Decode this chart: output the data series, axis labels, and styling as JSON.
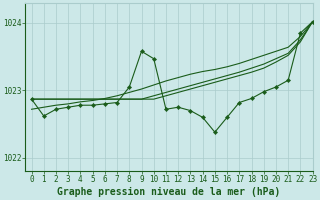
{
  "bg_color": "#cce8e8",
  "grid_color": "#aacccc",
  "line_color": "#1a5c1a",
  "xlabel": "Graphe pression niveau de la mer (hPa)",
  "xlabel_fontsize": 7,
  "tick_fontsize": 5.5,
  "xlim": [
    -0.5,
    23
  ],
  "ylim": [
    1021.8,
    1024.3
  ],
  "yticks": [
    1022,
    1023,
    1024
  ],
  "xticks": [
    0,
    1,
    2,
    3,
    4,
    5,
    6,
    7,
    8,
    9,
    10,
    11,
    12,
    13,
    14,
    15,
    16,
    17,
    18,
    19,
    20,
    21,
    22,
    23
  ],
  "jagged": [
    1022.87,
    1022.62,
    1022.72,
    1022.75,
    1022.78,
    1022.78,
    1022.8,
    1022.82,
    1023.05,
    1023.58,
    1023.47,
    1022.72,
    1022.75,
    1022.7,
    1022.6,
    1022.38,
    1022.6,
    1022.82,
    1022.88,
    1022.98,
    1023.05,
    1023.15,
    1023.85,
    1024.02
  ],
  "trend1": [
    1022.72,
    1022.75,
    1022.78,
    1022.8,
    1022.83,
    1022.85,
    1022.88,
    1022.92,
    1022.97,
    1023.02,
    1023.08,
    1023.14,
    1023.19,
    1023.24,
    1023.28,
    1023.31,
    1023.35,
    1023.4,
    1023.46,
    1023.52,
    1023.58,
    1023.64,
    1023.8,
    1024.02
  ],
  "trend2": [
    1022.87,
    1022.87,
    1022.87,
    1022.87,
    1022.87,
    1022.87,
    1022.87,
    1022.87,
    1022.87,
    1022.87,
    1022.92,
    1022.97,
    1023.02,
    1023.07,
    1023.12,
    1023.17,
    1023.22,
    1023.27,
    1023.33,
    1023.39,
    1023.47,
    1023.55,
    1023.75,
    1024.02
  ],
  "trend3": [
    1022.87,
    1022.87,
    1022.87,
    1022.87,
    1022.87,
    1022.87,
    1022.87,
    1022.87,
    1022.87,
    1022.87,
    1022.87,
    1022.92,
    1022.97,
    1023.02,
    1023.07,
    1023.12,
    1023.17,
    1023.22,
    1023.27,
    1023.33,
    1023.42,
    1023.52,
    1023.72,
    1024.02
  ]
}
